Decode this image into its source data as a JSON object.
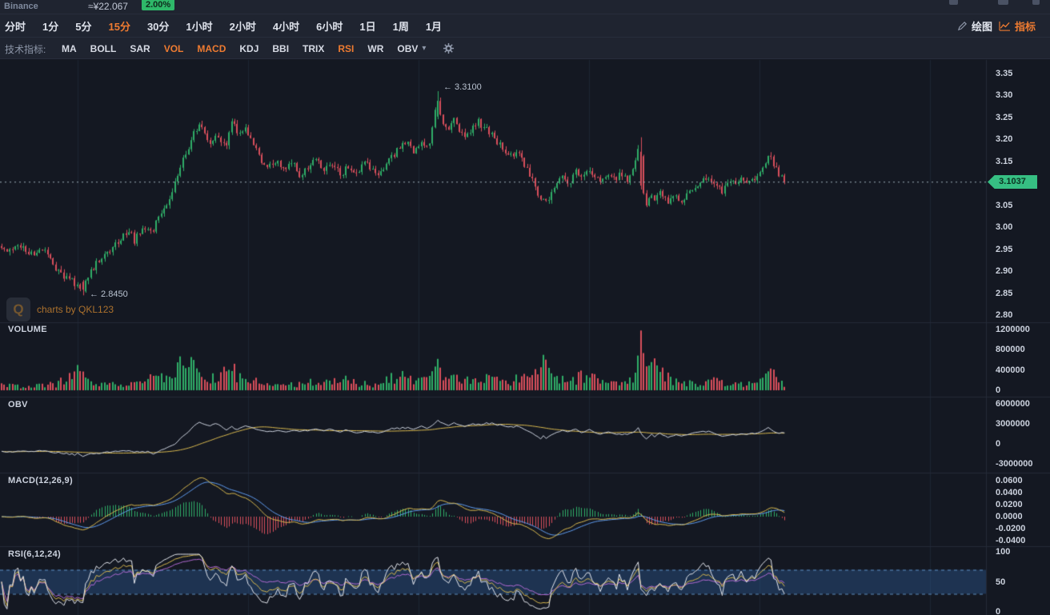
{
  "header": {
    "exchange": "Binance",
    "approx_price": "≈¥22.067",
    "change_percent": "2.00%"
  },
  "toolbar": {
    "draw_label": "绘图",
    "indicators_label": "指标"
  },
  "timeframe_tabs": {
    "items": [
      "分时",
      "1分",
      "5分",
      "15分",
      "30分",
      "1小时",
      "2小时",
      "4小时",
      "6小时",
      "1日",
      "1周",
      "1月"
    ],
    "active": "15分"
  },
  "indicator_bar": {
    "label": "技术指标:",
    "items": [
      "MA",
      "BOLL",
      "SAR",
      "VOL",
      "MACD",
      "KDJ",
      "BBI",
      "TRIX",
      "RSI",
      "WR",
      "OBV"
    ],
    "active": [
      "VOL",
      "MACD",
      "RSI"
    ],
    "dropdown_item": "OBV",
    "gear_icon": "settings-gear-icon"
  },
  "watermark": {
    "text": "charts by QKL123",
    "logo_icon": "qkl123-logo-icon"
  },
  "main_chart": {
    "high_annotation": "← 3.3100",
    "low_annotation": "← 2.8450",
    "current_price_label": "3.1037",
    "price_ticks": [
      "3.35",
      "3.30",
      "3.25",
      "3.20",
      "3.15",
      "3.05",
      "3.00",
      "2.95",
      "2.90",
      "2.85",
      "2.80"
    ]
  },
  "panels": {
    "volume": {
      "title": "VOLUME",
      "ticks": [
        "1200000",
        "800000",
        "400000",
        "0"
      ]
    },
    "obv": {
      "title": "OBV",
      "ticks": [
        "6000000",
        "3000000",
        "0",
        "-3000000"
      ]
    },
    "macd": {
      "title": "MACD(12,26,9)",
      "ticks": [
        "0.0600",
        "0.0400",
        "0.0200",
        "0.0000",
        "-0.0200",
        "-0.0400"
      ]
    },
    "rsi": {
      "title": "RSI(6,12,24)",
      "ticks": [
        "100",
        "50",
        "0"
      ]
    }
  },
  "colors": {
    "background": "#141822",
    "header_bg": "#1f2430",
    "up": "#2fae68",
    "down": "#d94f5c",
    "accent_orange": "#ee7b31",
    "badge_green": "#36bf83",
    "grid": "#1d2433",
    "separator": "#242a38",
    "dif_line": "#d8b84e",
    "dea_line": "#5f9cf0",
    "obv_line": "#ccd2de",
    "obv_ma": "#d8b84e",
    "rsi6": "#e4e7ee",
    "rsi12": "#d8b84e",
    "rsi24": "#b36ad4",
    "rsi_band": "rgba(48,98,158,0.38)",
    "rsi_band_edge": "#5d8fc4",
    "price_line": "#9fb0b8"
  },
  "chart_data": {
    "type": "candlestick",
    "symbol": "Binance",
    "interval": "15分",
    "last_price": 3.1037,
    "annotated_high": 3.31,
    "annotated_low": 2.845,
    "price_axis_range": [
      2.8,
      3.35
    ],
    "volume_axis_max": 1200000,
    "obv_axis_range": [
      -3000000,
      6000000
    ],
    "macd_axis_range": [
      -0.04,
      0.06
    ],
    "rsi_axis_range": [
      0,
      100
    ],
    "candle_count": 290,
    "indicators": {
      "macd": {
        "params": [
          12,
          26,
          9
        ]
      },
      "rsi": {
        "params": [
          6,
          12,
          24
        ],
        "band": [
          30,
          70
        ]
      },
      "obv": {
        "ma_period": 28
      }
    },
    "price_keypoints": [
      [
        0,
        2.955
      ],
      [
        12,
        2.945
      ],
      [
        25,
        2.96
      ],
      [
        38,
        2.935
      ],
      [
        52,
        2.955
      ],
      [
        65,
        2.915
      ],
      [
        80,
        2.89
      ],
      [
        92,
        2.875
      ],
      [
        100,
        2.858
      ],
      [
        104,
        2.86
      ],
      [
        112,
        2.895
      ],
      [
        124,
        2.925
      ],
      [
        136,
        2.945
      ],
      [
        150,
        2.975
      ],
      [
        160,
        2.995
      ],
      [
        168,
        2.97
      ],
      [
        178,
        3.0
      ],
      [
        188,
        2.985
      ],
      [
        198,
        3.02
      ],
      [
        210,
        3.06
      ],
      [
        222,
        3.12
      ],
      [
        232,
        3.17
      ],
      [
        242,
        3.21
      ],
      [
        252,
        3.235
      ],
      [
        262,
        3.195
      ],
      [
        272,
        3.215
      ],
      [
        282,
        3.175
      ],
      [
        290,
        3.245
      ],
      [
        298,
        3.21
      ],
      [
        306,
        3.23
      ],
      [
        316,
        3.19
      ],
      [
        326,
        3.155
      ],
      [
        336,
        3.135
      ],
      [
        346,
        3.155
      ],
      [
        356,
        3.125
      ],
      [
        366,
        3.15
      ],
      [
        376,
        3.115
      ],
      [
        386,
        3.14
      ],
      [
        396,
        3.155
      ],
      [
        406,
        3.13
      ],
      [
        416,
        3.15
      ],
      [
        426,
        3.12
      ],
      [
        436,
        3.14
      ],
      [
        446,
        3.12
      ],
      [
        456,
        3.15
      ],
      [
        466,
        3.13
      ],
      [
        476,
        3.12
      ],
      [
        486,
        3.15
      ],
      [
        496,
        3.175
      ],
      [
        506,
        3.195
      ],
      [
        516,
        3.175
      ],
      [
        526,
        3.195
      ],
      [
        536,
        3.19
      ],
      [
        543,
        3.26
      ],
      [
        546,
        3.295
      ],
      [
        551,
        3.245
      ],
      [
        558,
        3.22
      ],
      [
        566,
        3.245
      ],
      [
        574,
        3.225
      ],
      [
        582,
        3.21
      ],
      [
        590,
        3.225
      ],
      [
        598,
        3.24
      ],
      [
        606,
        3.225
      ],
      [
        614,
        3.21
      ],
      [
        622,
        3.195
      ],
      [
        630,
        3.175
      ],
      [
        638,
        3.16
      ],
      [
        648,
        3.17
      ],
      [
        656,
        3.14
      ],
      [
        664,
        3.115
      ],
      [
        672,
        3.08
      ],
      [
        680,
        3.055
      ],
      [
        688,
        3.075
      ],
      [
        696,
        3.1
      ],
      [
        704,
        3.115
      ],
      [
        712,
        3.1
      ],
      [
        720,
        3.125
      ],
      [
        728,
        3.11
      ],
      [
        736,
        3.135
      ],
      [
        744,
        3.115
      ],
      [
        752,
        3.1
      ],
      [
        760,
        3.125
      ],
      [
        768,
        3.11
      ],
      [
        776,
        3.125
      ],
      [
        784,
        3.11
      ],
      [
        792,
        3.14
      ],
      [
        797,
        3.17
      ],
      [
        800,
        3.19
      ],
      [
        803,
        3.09
      ],
      [
        807,
        3.055
      ],
      [
        812,
        3.075
      ],
      [
        818,
        3.055
      ],
      [
        824,
        3.085
      ],
      [
        830,
        3.065
      ],
      [
        836,
        3.05
      ],
      [
        842,
        3.08
      ],
      [
        848,
        3.065
      ],
      [
        854,
        3.055
      ],
      [
        860,
        3.09
      ],
      [
        866,
        3.075
      ],
      [
        872,
        3.1
      ],
      [
        878,
        3.115
      ],
      [
        884,
        3.1
      ],
      [
        890,
        3.115
      ],
      [
        896,
        3.09
      ],
      [
        902,
        3.08
      ],
      [
        908,
        3.1
      ],
      [
        914,
        3.115
      ],
      [
        920,
        3.1
      ],
      [
        926,
        3.115
      ],
      [
        932,
        3.105
      ],
      [
        938,
        3.115
      ],
      [
        944,
        3.11
      ],
      [
        950,
        3.12
      ],
      [
        956,
        3.15
      ],
      [
        961,
        3.165
      ],
      [
        966,
        3.14
      ],
      [
        972,
        3.125
      ],
      [
        978,
        3.115
      ],
      [
        983,
        3.104
      ]
    ],
    "volume_keypoints": [
      [
        0,
        90000
      ],
      [
        40,
        70000
      ],
      [
        70,
        120000
      ],
      [
        90,
        280000
      ],
      [
        97,
        500000
      ],
      [
        104,
        320000
      ],
      [
        120,
        110000
      ],
      [
        150,
        130000
      ],
      [
        175,
        180000
      ],
      [
        192,
        260000
      ],
      [
        205,
        220000
      ],
      [
        218,
        300000
      ],
      [
        226,
        680000
      ],
      [
        233,
        380000
      ],
      [
        241,
        650000
      ],
      [
        250,
        320000
      ],
      [
        262,
        200000
      ],
      [
        275,
        260000
      ],
      [
        288,
        420000
      ],
      [
        298,
        260000
      ],
      [
        310,
        200000
      ],
      [
        330,
        130000
      ],
      [
        355,
        110000
      ],
      [
        380,
        140000
      ],
      [
        405,
        160000
      ],
      [
        425,
        210000
      ],
      [
        450,
        130000
      ],
      [
        470,
        120000
      ],
      [
        490,
        260000
      ],
      [
        510,
        240000
      ],
      [
        528,
        180000
      ],
      [
        540,
        300000
      ],
      [
        546,
        620000
      ],
      [
        554,
        330000
      ],
      [
        570,
        210000
      ],
      [
        588,
        240000
      ],
      [
        600,
        260000
      ],
      [
        615,
        180000
      ],
      [
        630,
        170000
      ],
      [
        645,
        210000
      ],
      [
        660,
        240000
      ],
      [
        672,
        350000
      ],
      [
        680,
        700000
      ],
      [
        688,
        380000
      ],
      [
        700,
        220000
      ],
      [
        715,
        190000
      ],
      [
        728,
        260000
      ],
      [
        742,
        220000
      ],
      [
        756,
        180000
      ],
      [
        770,
        160000
      ],
      [
        784,
        200000
      ],
      [
        794,
        260000
      ],
      [
        800,
        1200000
      ],
      [
        806,
        520000
      ],
      [
        818,
        630000
      ],
      [
        828,
        300000
      ],
      [
        840,
        180000
      ],
      [
        855,
        140000
      ],
      [
        870,
        130000
      ],
      [
        885,
        160000
      ],
      [
        900,
        190000
      ],
      [
        915,
        150000
      ],
      [
        930,
        130000
      ],
      [
        945,
        160000
      ],
      [
        958,
        280000
      ],
      [
        965,
        430000
      ],
      [
        972,
        220000
      ],
      [
        980,
        120000
      ]
    ]
  }
}
